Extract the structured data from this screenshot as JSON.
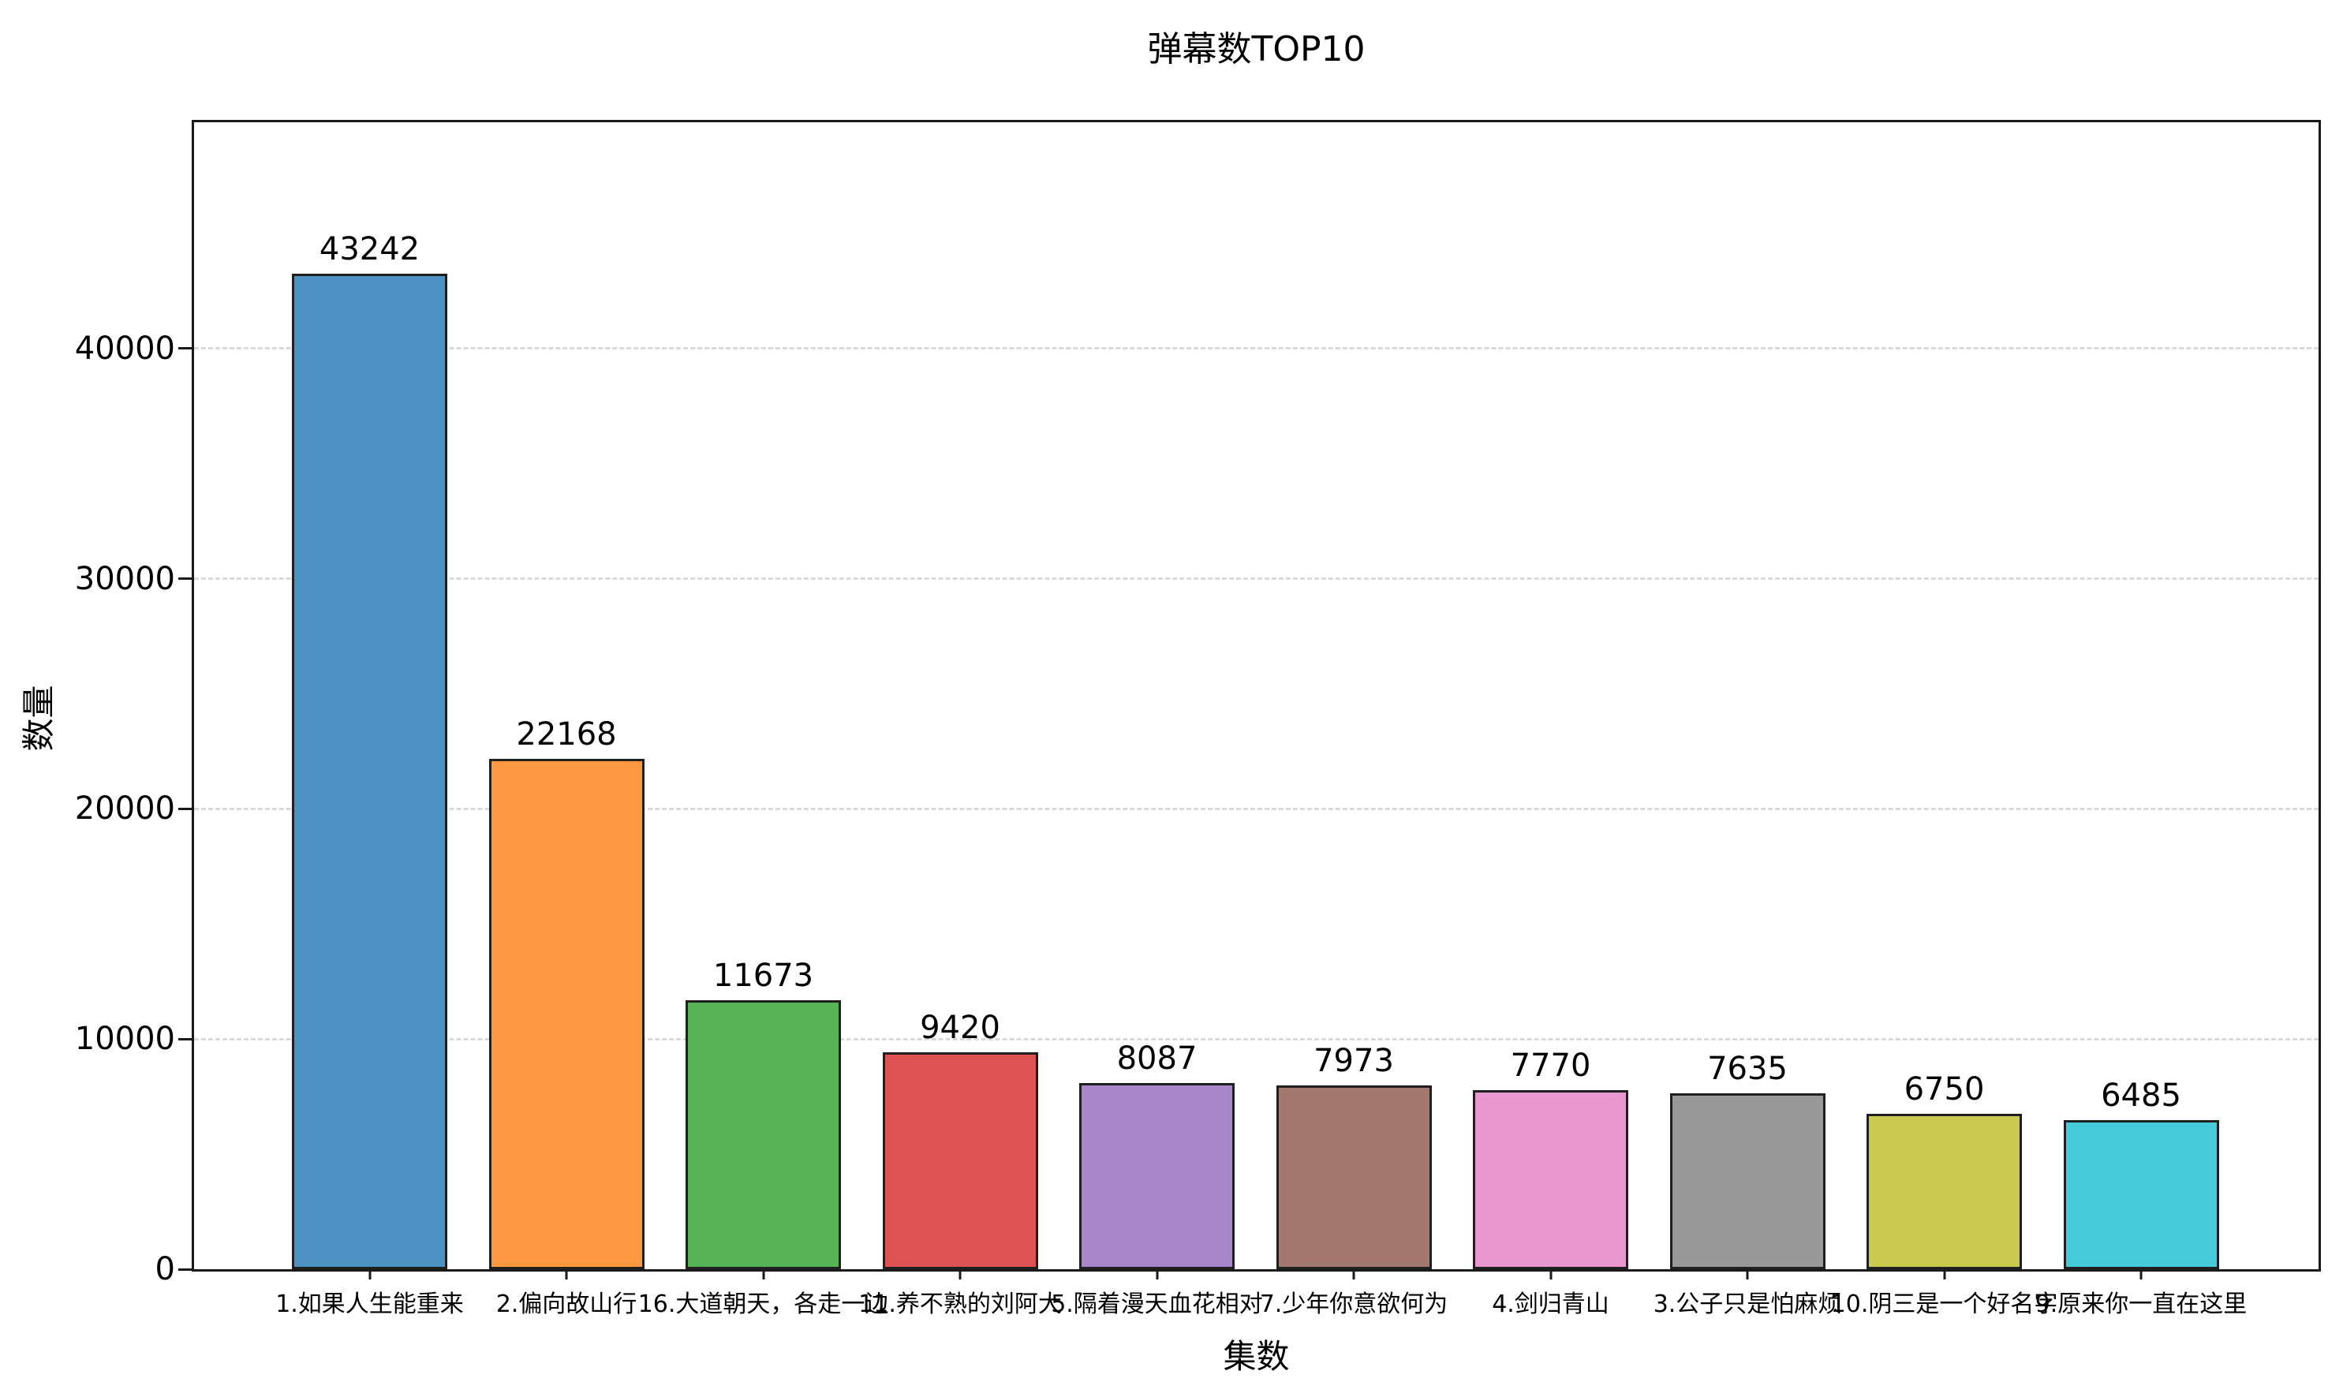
{
  "chart_data": {
    "type": "bar",
    "title": "弹幕数TOP10",
    "xlabel": "集数",
    "ylabel": "数量",
    "categories": [
      "1.如果人生能重来",
      "2.偏向故山行",
      "16.大道朝天，各走一边",
      "11.养不熟的刘阿大",
      "5.隔着漫天血花相对",
      "7.少年你意欲何为",
      "4.剑归青山",
      "3.公子只是怕麻烦",
      "10.阴三是一个好名字",
      "9.原来你一直在这里"
    ],
    "values": [
      43242,
      22168,
      11673,
      9420,
      8087,
      7973,
      7770,
      7635,
      6750,
      6485
    ],
    "bar_colors": [
      "#4c92c3",
      "#ff983e",
      "#56b356",
      "#de5253",
      "#a985ca",
      "#a3786f",
      "#e898ce",
      "#999999",
      "#c9ca4e",
      "#45cbd9"
    ],
    "bar_edge_color": "#1f1f1f",
    "yticks": [
      0,
      10000,
      20000,
      30000,
      40000
    ],
    "ylim": [
      0,
      49830
    ],
    "grid": "dashed-horizontal",
    "grid_color": "#d9d9d9",
    "legend": "none",
    "background": "#ffffff"
  }
}
